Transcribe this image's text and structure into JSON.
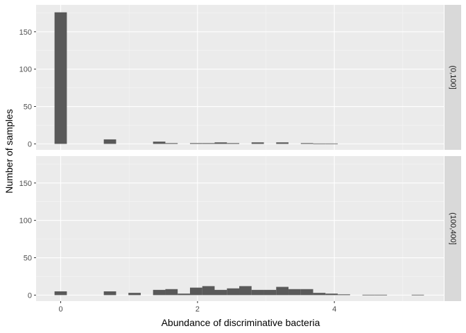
{
  "chart_data": {
    "type": "bar",
    "xlabel": "Abundance of discriminative bacteria",
    "ylabel": "Number of samples",
    "xlim": [
      -0.36,
      5.6
    ],
    "ylim": [
      -8,
      186
    ],
    "x_ticks": [
      0,
      2,
      4
    ],
    "y_ticks": [
      0,
      50,
      100,
      150
    ],
    "bin_width": 0.18,
    "colors": {
      "bar": "#595959",
      "panel": "#ebebeb",
      "strip": "#d9d9d9",
      "grid_major": "#ffffff",
      "grid_minor": "#f5f5f5"
    },
    "panels": [
      {
        "label": "(0,100]",
        "bins": [
          {
            "x": 0.0,
            "count": 176
          },
          {
            "x": 0.72,
            "count": 6
          },
          {
            "x": 1.44,
            "count": 3
          },
          {
            "x": 1.62,
            "count": 1
          },
          {
            "x": 1.98,
            "count": 1
          },
          {
            "x": 2.16,
            "count": 1
          },
          {
            "x": 2.34,
            "count": 2
          },
          {
            "x": 2.52,
            "count": 1
          },
          {
            "x": 2.88,
            "count": 2
          },
          {
            "x": 3.24,
            "count": 2
          },
          {
            "x": 3.6,
            "count": 1
          },
          {
            "x": 3.78,
            "count": 0.5
          },
          {
            "x": 3.96,
            "count": 0.5
          }
        ]
      },
      {
        "label": "(100,400]",
        "bins": [
          {
            "x": 0.0,
            "count": 5
          },
          {
            "x": 0.72,
            "count": 5
          },
          {
            "x": 1.08,
            "count": 3
          },
          {
            "x": 1.44,
            "count": 7
          },
          {
            "x": 1.62,
            "count": 8
          },
          {
            "x": 1.8,
            "count": 2
          },
          {
            "x": 1.98,
            "count": 10
          },
          {
            "x": 2.16,
            "count": 12
          },
          {
            "x": 2.34,
            "count": 7
          },
          {
            "x": 2.52,
            "count": 9
          },
          {
            "x": 2.7,
            "count": 12
          },
          {
            "x": 2.88,
            "count": 7
          },
          {
            "x": 3.06,
            "count": 7
          },
          {
            "x": 3.24,
            "count": 11
          },
          {
            "x": 3.42,
            "count": 8
          },
          {
            "x": 3.6,
            "count": 8
          },
          {
            "x": 3.78,
            "count": 3
          },
          {
            "x": 3.96,
            "count": 2
          },
          {
            "x": 4.14,
            "count": 1
          },
          {
            "x": 4.5,
            "count": 0.5
          },
          {
            "x": 4.68,
            "count": 0.5
          },
          {
            "x": 5.22,
            "count": 0.5
          }
        ]
      }
    ]
  }
}
